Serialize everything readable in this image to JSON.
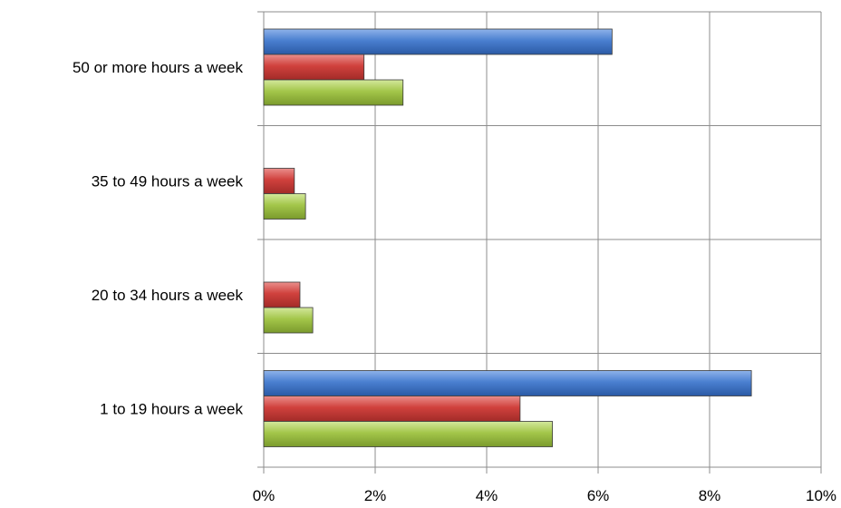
{
  "chart_data": {
    "type": "bar",
    "orientation": "horizontal",
    "categories": [
      "50 or more hours a week",
      "35 to 49 hours a week",
      "20 to 34 hours a week",
      "1 to 19 hours a week"
    ],
    "series": [
      {
        "color": "#3e72c6",
        "values": [
          6.25,
          null,
          null,
          8.75
        ]
      },
      {
        "color": "#c83a37",
        "values": [
          1.8,
          0.55,
          0.65,
          4.6
        ]
      },
      {
        "color": "#9bbb3c",
        "values": [
          2.5,
          0.75,
          0.88,
          5.18
        ]
      }
    ],
    "xlim": [
      0,
      10
    ],
    "x_ticks": [
      "0%",
      "2%",
      "4%",
      "6%",
      "8%",
      "10%"
    ],
    "grid": true,
    "legend": "none"
  }
}
